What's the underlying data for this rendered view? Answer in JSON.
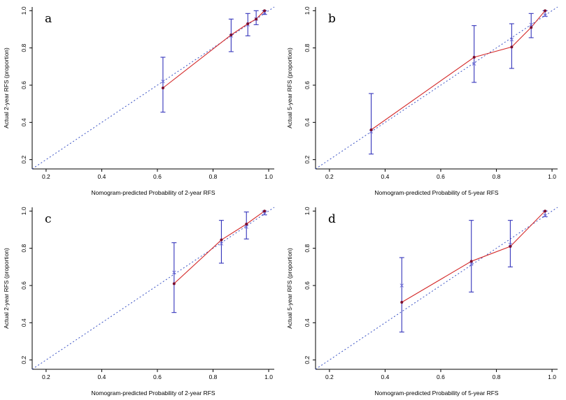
{
  "figure": {
    "description": "Calibration curves of nomogram-predicted probability versus actual RFS",
    "colors": {
      "ideal_line": "#3a52c4",
      "error_bar": "#3434bb",
      "obs_marker": "#6b6bd6",
      "calibration_line": "#d42a2a",
      "point_fill": "#7a0c2e",
      "axis": "#000000",
      "text": "#000000",
      "background": "#ffffff"
    }
  },
  "chart_data": [
    {
      "type": "line",
      "panel_label": "a",
      "xlabel": "Nomogram-predicted Probability of 2-year RFS",
      "ylabel": "Actual 2-year RFS (proportion)",
      "xlim": [
        0.15,
        1.02
      ],
      "ylim": [
        0.15,
        1.02
      ],
      "xticks": [
        0.2,
        0.4,
        0.6,
        0.8,
        1.0
      ],
      "yticks": [
        0.2,
        0.4,
        0.6,
        0.8,
        1.0
      ],
      "legend_position": "none",
      "grid": false,
      "ideal_line": {
        "from": [
          0.15,
          0.15
        ],
        "to": [
          1.02,
          1.02
        ],
        "style": "dotted"
      },
      "series": [
        {
          "name": "calibration",
          "points": [
            {
              "x": 0.62,
              "y": 0.585,
              "obs": 0.62,
              "lo": 0.455,
              "hi": 0.75
            },
            {
              "x": 0.865,
              "y": 0.87,
              "obs": 0.865,
              "lo": 0.78,
              "hi": 0.955
            },
            {
              "x": 0.925,
              "y": 0.93,
              "obs": 0.925,
              "lo": 0.865,
              "hi": 0.985
            },
            {
              "x": 0.955,
              "y": 0.955,
              "obs": 0.955,
              "lo": 0.925,
              "hi": 1.0
            },
            {
              "x": 0.985,
              "y": 1.0,
              "obs": 0.99,
              "lo": 0.98,
              "hi": 1.0
            }
          ]
        }
      ]
    },
    {
      "type": "line",
      "panel_label": "b",
      "xlabel": "Nomogram-predicted Probability of 5-year RFS",
      "ylabel": "Actual 5-year RFS (proportion)",
      "xlim": [
        0.15,
        1.02
      ],
      "ylim": [
        0.15,
        1.02
      ],
      "xticks": [
        0.2,
        0.4,
        0.6,
        0.8,
        1.0
      ],
      "yticks": [
        0.2,
        0.4,
        0.6,
        0.8,
        1.0
      ],
      "legend_position": "none",
      "grid": false,
      "ideal_line": {
        "from": [
          0.15,
          0.15
        ],
        "to": [
          1.02,
          1.02
        ],
        "style": "dotted"
      },
      "series": [
        {
          "name": "calibration",
          "points": [
            {
              "x": 0.35,
              "y": 0.36,
              "obs": 0.35,
              "lo": 0.23,
              "hi": 0.555
            },
            {
              "x": 0.72,
              "y": 0.75,
              "obs": 0.715,
              "lo": 0.615,
              "hi": 0.92
            },
            {
              "x": 0.855,
              "y": 0.805,
              "obs": 0.845,
              "lo": 0.69,
              "hi": 0.93
            },
            {
              "x": 0.925,
              "y": 0.91,
              "obs": 0.925,
              "lo": 0.855,
              "hi": 0.985
            },
            {
              "x": 0.975,
              "y": 1.0,
              "obs": 0.975,
              "lo": 0.97,
              "hi": 1.0
            }
          ]
        }
      ]
    },
    {
      "type": "line",
      "panel_label": "c",
      "xlabel": "Nomogram-predicted Probability of 2-year RFS",
      "ylabel": "Actual 2-year RFS (proportion)",
      "xlim": [
        0.15,
        1.02
      ],
      "ylim": [
        0.15,
        1.02
      ],
      "xticks": [
        0.2,
        0.4,
        0.6,
        0.8,
        1.0
      ],
      "yticks": [
        0.2,
        0.4,
        0.6,
        0.8,
        1.0
      ],
      "legend_position": "none",
      "grid": false,
      "ideal_line": {
        "from": [
          0.15,
          0.15
        ],
        "to": [
          1.02,
          1.02
        ],
        "style": "dotted"
      },
      "series": [
        {
          "name": "calibration",
          "points": [
            {
              "x": 0.66,
              "y": 0.61,
              "obs": 0.67,
              "lo": 0.455,
              "hi": 0.83
            },
            {
              "x": 0.83,
              "y": 0.845,
              "obs": 0.825,
              "lo": 0.72,
              "hi": 0.95
            },
            {
              "x": 0.92,
              "y": 0.93,
              "obs": 0.915,
              "lo": 0.85,
              "hi": 0.995
            },
            {
              "x": 0.985,
              "y": 1.0,
              "obs": 0.985,
              "lo": 0.98,
              "hi": 1.0
            }
          ]
        }
      ]
    },
    {
      "type": "line",
      "panel_label": "d",
      "xlabel": "Nomogram-predicted Probability of 5-year RFS",
      "ylabel": "Actual 5-year RFS (proportion)",
      "xlim": [
        0.15,
        1.02
      ],
      "ylim": [
        0.15,
        1.02
      ],
      "xticks": [
        0.2,
        0.4,
        0.6,
        0.8,
        1.0
      ],
      "yticks": [
        0.2,
        0.4,
        0.6,
        0.8,
        1.0
      ],
      "legend_position": "none",
      "grid": false,
      "ideal_line": {
        "from": [
          0.15,
          0.15
        ],
        "to": [
          1.02,
          1.02
        ],
        "style": "dotted"
      },
      "series": [
        {
          "name": "calibration",
          "points": [
            {
              "x": 0.46,
              "y": 0.51,
              "obs": 0.6,
              "lo": 0.35,
              "hi": 0.75
            },
            {
              "x": 0.71,
              "y": 0.73,
              "obs": 0.715,
              "lo": 0.565,
              "hi": 0.95
            },
            {
              "x": 0.85,
              "y": 0.81,
              "obs": 0.82,
              "lo": 0.7,
              "hi": 0.95
            },
            {
              "x": 0.975,
              "y": 1.0,
              "obs": 0.975,
              "lo": 0.97,
              "hi": 1.0
            }
          ]
        }
      ]
    }
  ]
}
